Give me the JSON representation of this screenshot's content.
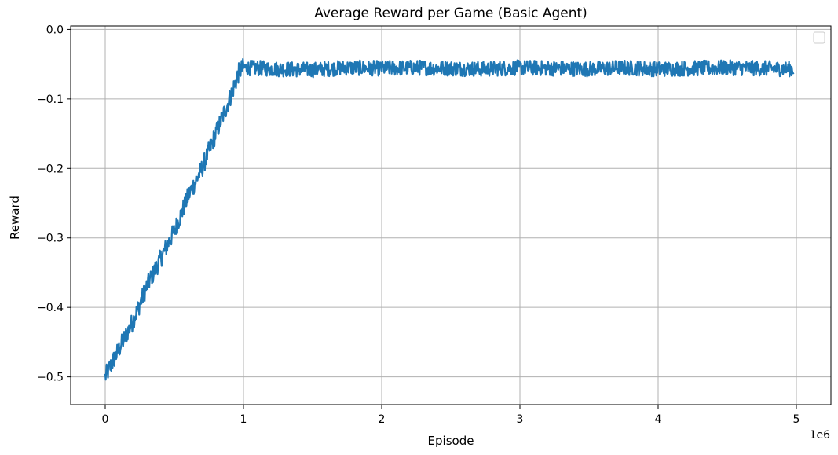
{
  "chart_data": {
    "type": "line",
    "title": "Average Reward per Game (Basic Agent)",
    "xlabel": "Episode",
    "ylabel": "Reward",
    "x_offset_label": "1e6",
    "xlim": [
      -0.25,
      5.25
    ],
    "ylim": [
      -0.54,
      0.005
    ],
    "x_ticks": [
      0,
      1,
      2,
      3,
      4,
      5
    ],
    "x_tick_labels": [
      "0",
      "1",
      "2",
      "3",
      "4",
      "5"
    ],
    "y_ticks": [
      0.0,
      -0.1,
      -0.2,
      -0.3,
      -0.4,
      -0.5
    ],
    "y_tick_labels": [
      "0.0",
      "−0.1",
      "−0.2",
      "−0.3",
      "−0.4",
      "−0.5"
    ],
    "grid": true,
    "legend": "top-right (empty)",
    "line_color": "#1f77b4",
    "series": [
      {
        "x": [
          0,
          0.1,
          0.2,
          0.3,
          0.4,
          0.5,
          0.6,
          0.7,
          0.8,
          0.9,
          0.97,
          1.0,
          1.25,
          1.5,
          1.75,
          2.0,
          2.25,
          2.5,
          2.75,
          3.0,
          3.25,
          3.5,
          3.75,
          4.0,
          4.25,
          4.5,
          4.75,
          4.98
        ],
        "values": [
          -0.5,
          -0.46,
          -0.42,
          -0.37,
          -0.33,
          -0.29,
          -0.24,
          -0.2,
          -0.15,
          -0.1,
          -0.06,
          -0.055,
          -0.057,
          -0.058,
          -0.055,
          -0.056,
          -0.055,
          -0.056,
          -0.057,
          -0.055,
          -0.056,
          -0.057,
          -0.055,
          -0.057,
          -0.056,
          -0.055,
          -0.056,
          -0.057
        ]
      }
    ]
  }
}
